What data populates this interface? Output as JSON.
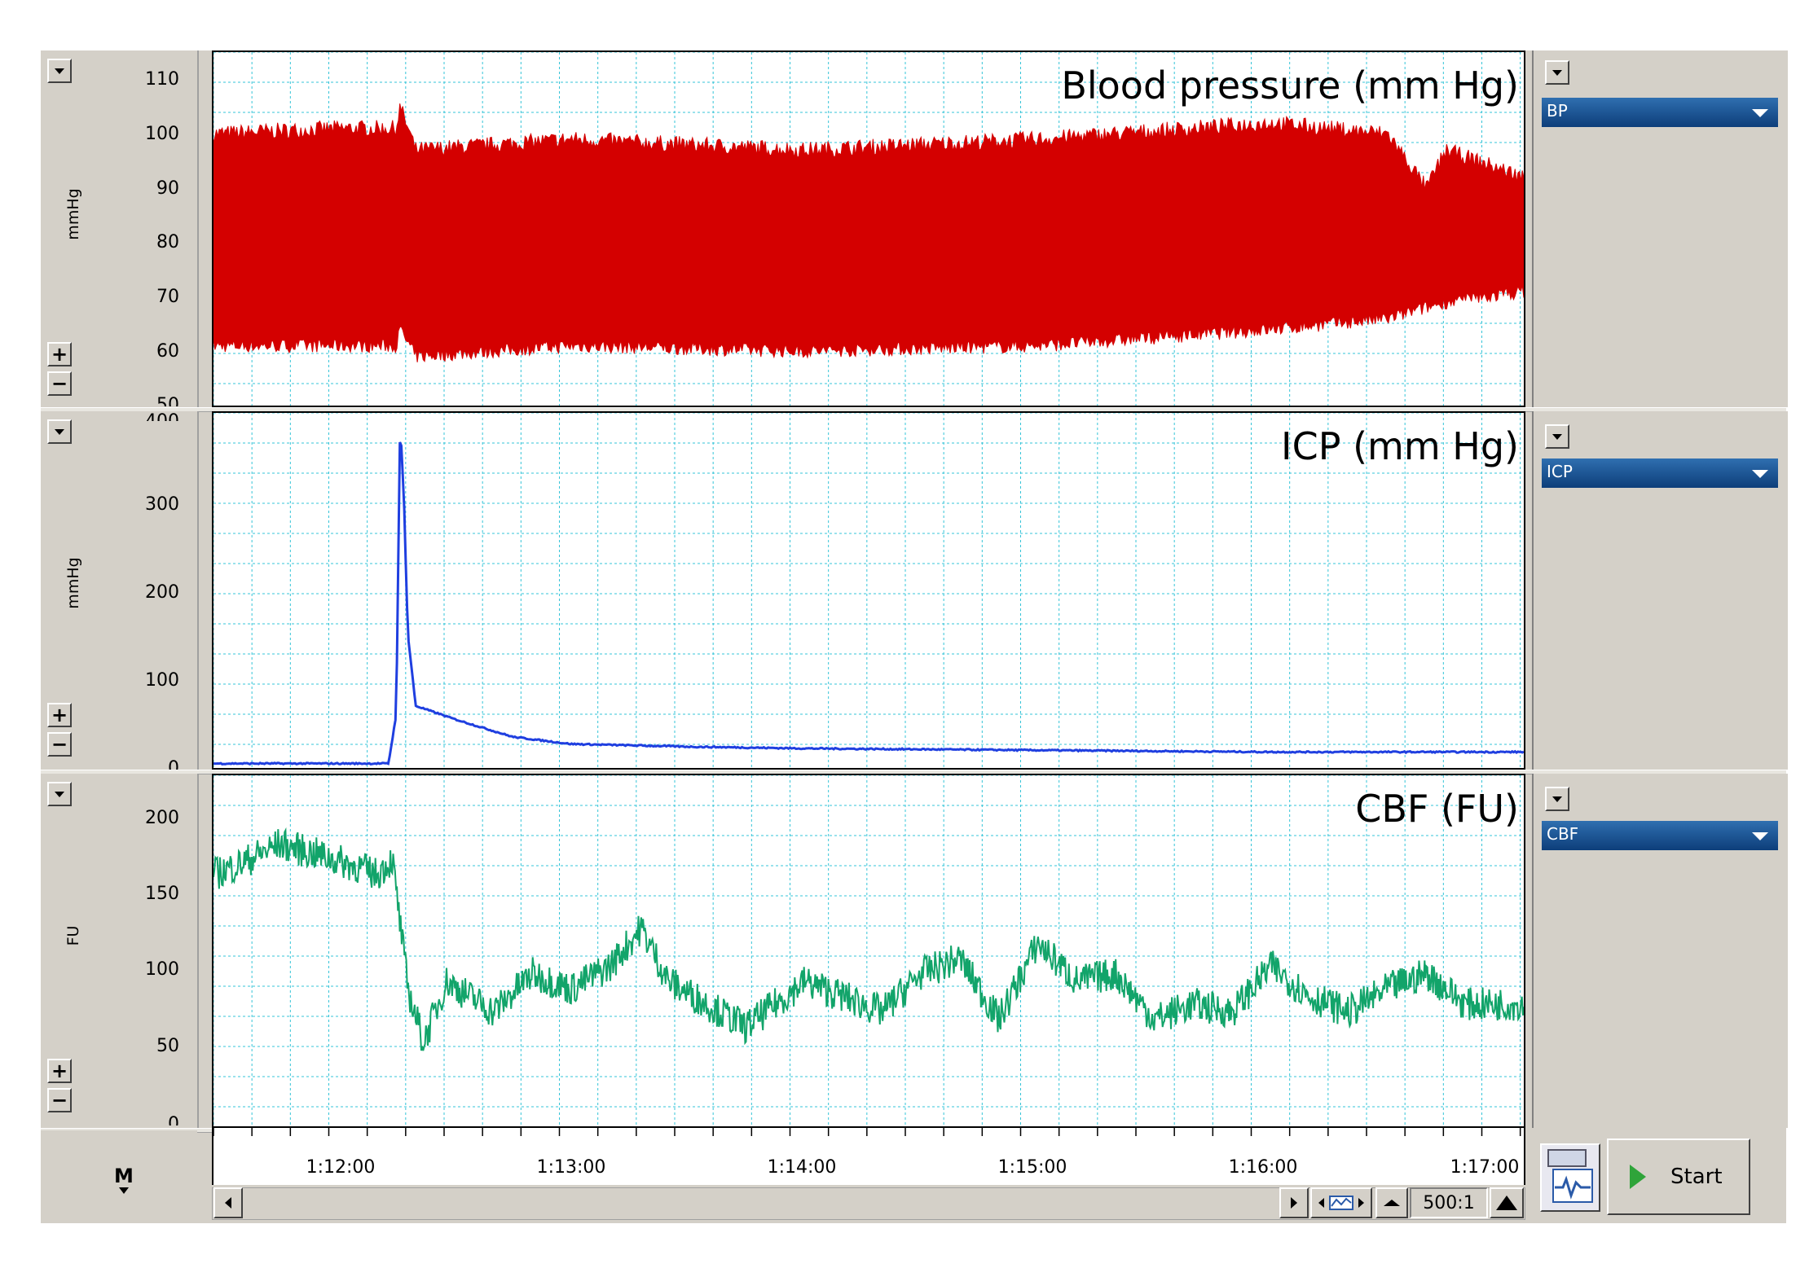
{
  "panels": [
    {
      "title": "Blood pressure (mm Hg)",
      "unit": "mmHg",
      "channel": "BP",
      "color": "#d40000",
      "y_ticks": [
        "110",
        "100",
        "90",
        "80",
        "70",
        "60",
        "50"
      ],
      "ylim": [
        50,
        115
      ]
    },
    {
      "title": "ICP (mm Hg)",
      "unit": "mmHg",
      "channel": "ICP",
      "color": "#1f3fe0",
      "y_ticks": [
        "400",
        "300",
        "200",
        "100",
        "0"
      ],
      "ylim": [
        0,
        400
      ]
    },
    {
      "title": "CBF (FU)",
      "unit": "FU",
      "channel": "CBF",
      "color": "#12a46a",
      "y_ticks": [
        "200",
        "150",
        "100",
        "50",
        "0"
      ],
      "ylim": [
        0,
        230
      ]
    }
  ],
  "time_axis": {
    "labels": [
      "1:12:00",
      "1:13:00",
      "1:14:00",
      "1:15:00",
      "1:16:00",
      "1:17:00"
    ]
  },
  "controls": {
    "plus": "+",
    "minus": "−",
    "marker": "M",
    "ratio": "500:1",
    "start_label": "Start"
  },
  "chart_data": [
    {
      "type": "area",
      "title": "Blood pressure (mm Hg)",
      "ylabel": "mmHg",
      "ylim": [
        50,
        115
      ],
      "x": [
        "1:11:28",
        "1:12:00",
        "1:12:15",
        "1:12:16",
        "1:12:20",
        "1:13:00",
        "1:14:00",
        "1:15:00",
        "1:16:00",
        "1:16:30",
        "1:16:40",
        "1:16:45",
        "1:17:05"
      ],
      "series": [
        {
          "name": "systolic",
          "values": [
            100,
            101,
            101,
            105,
            97,
            99,
            97,
            99,
            102,
            100,
            90,
            97,
            92
          ]
        },
        {
          "name": "diastolic",
          "values": [
            61,
            61,
            61,
            64,
            59,
            61,
            60,
            61,
            64,
            66,
            68,
            69,
            71
          ]
        }
      ],
      "grid": true
    },
    {
      "type": "line",
      "title": "ICP (mm Hg)",
      "ylabel": "mmHg",
      "ylim": [
        0,
        400
      ],
      "x": [
        "1:11:28",
        "1:12:13",
        "1:12:15",
        "1:12:16",
        "1:12:17",
        "1:12:18",
        "1:12:20",
        "1:12:30",
        "1:12:45",
        "1:13:00",
        "1:13:30",
        "1:14:00",
        "1:15:00",
        "1:16:00",
        "1:17:05"
      ],
      "series": [
        {
          "name": "ICP",
          "values": [
            5,
            5,
            60,
            390,
            300,
            150,
            70,
            55,
            35,
            27,
            24,
            22,
            20,
            18,
            18
          ]
        }
      ],
      "grid": true
    },
    {
      "type": "line",
      "title": "CBF (FU)",
      "ylabel": "FU",
      "ylim": [
        0,
        230
      ],
      "x": [
        "1:11:28",
        "1:11:35",
        "1:11:45",
        "1:11:55",
        "1:12:05",
        "1:12:10",
        "1:12:14",
        "1:12:18",
        "1:12:22",
        "1:12:28",
        "1:12:40",
        "1:12:50",
        "1:13:00",
        "1:13:10",
        "1:13:18",
        "1:13:25",
        "1:13:35",
        "1:13:45",
        "1:14:00",
        "1:14:10",
        "1:14:20",
        "1:14:30",
        "1:14:40",
        "1:14:50",
        "1:15:00",
        "1:15:10",
        "1:15:20",
        "1:15:30",
        "1:15:40",
        "1:15:50",
        "1:16:00",
        "1:16:10",
        "1:16:20",
        "1:16:30",
        "1:16:40",
        "1:16:50",
        "1:17:05"
      ],
      "series": [
        {
          "name": "CBF",
          "values": [
            165,
            172,
            185,
            178,
            170,
            165,
            175,
            90,
            55,
            95,
            75,
            100,
            90,
            105,
            130,
            95,
            80,
            65,
            95,
            85,
            75,
            100,
            110,
            70,
            120,
            95,
            100,
            70,
            80,
            75,
            105,
            85,
            75,
            90,
            100,
            80,
            80
          ]
        }
      ],
      "grid": true
    }
  ]
}
